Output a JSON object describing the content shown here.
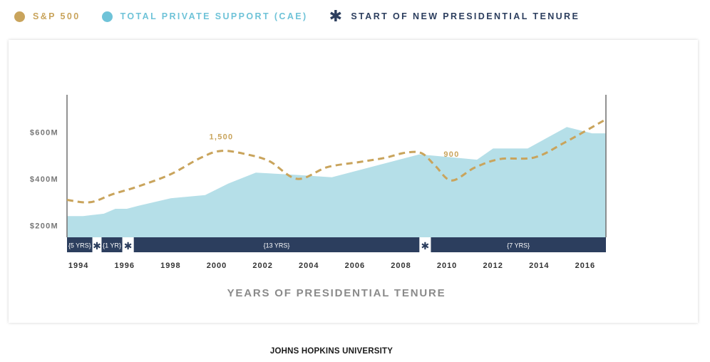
{
  "legend": {
    "sp500": {
      "label": "S&P 500",
      "color": "#c9a45c"
    },
    "support": {
      "label": "TOTAL PRIVATE SUPPORT (CAE)",
      "color": "#6fc3d8"
    },
    "tenure": {
      "label": "START OF NEW PRESIDENTIAL TENURE",
      "color": "#2c3e5e",
      "icon": "asterisk-icon"
    }
  },
  "footer": "JOHNS HOPKINS UNIVERSITY",
  "chart_data": {
    "type": "area",
    "xlabel": "YEARS OF PRESIDENTIAL TENURE",
    "ylabel": "",
    "xlim": [
      1993.5,
      2016.9
    ],
    "ylim": [
      150,
      760
    ],
    "y_ticks": [
      200,
      400,
      600
    ],
    "y_tick_labels": [
      "$200M",
      "$400M",
      "$600M"
    ],
    "x_ticks": [
      1994,
      1996,
      1998,
      2000,
      2002,
      2004,
      2006,
      2008,
      2010,
      2012,
      2014,
      2016
    ],
    "grid": false,
    "legend_position": "top",
    "series": [
      {
        "name": "TOTAL PRIVATE SUPPORT (CAE)",
        "kind": "area",
        "color": "#b5dfe8",
        "x": [
          1993.5,
          1994.2,
          1995.1,
          1995.6,
          1996.1,
          1996.6,
          1998.0,
          1999.5,
          2000.5,
          2001.7,
          2003.5,
          2005.0,
          2008.8,
          2011.3,
          2012.0,
          2013.5,
          2015.2,
          2016.3,
          2016.9
        ],
        "y": [
          241,
          241,
          251,
          272,
          272,
          285,
          317,
          331,
          380,
          427,
          417,
          407,
          505,
          482,
          530,
          530,
          622,
          595,
          595
        ]
      },
      {
        "name": "S&P 500",
        "kind": "dashed-line",
        "color": "#c9a45c",
        "x": [
          1993.5,
          1994.5,
          1995.5,
          1996.6,
          1998.0,
          1999.3,
          2000.2,
          2001.3,
          2002.3,
          2003.5,
          2004.8,
          2006.2,
          2007.3,
          2008.2,
          2008.9,
          2009.5,
          2010.2,
          2011.2,
          2012.3,
          2013.8,
          2015.1,
          2016.9
        ],
        "y": [
          310,
          300,
          335,
          368,
          420,
          490,
          520,
          505,
          475,
          400,
          450,
          472,
          490,
          512,
          510,
          455,
          393,
          448,
          485,
          492,
          555,
          655
        ]
      }
    ],
    "annotations": [
      {
        "text": "1,500",
        "x": 2000.2,
        "y": 570
      },
      {
        "text": "900",
        "x": 2010.2,
        "y": 495
      }
    ],
    "tenure_bar": {
      "segments": [
        {
          "label": "{5 YRS}",
          "start": 1993.5,
          "end": 1994.6
        },
        {
          "label": "{1 YR}",
          "start": 1995.0,
          "end": 1995.9
        },
        {
          "label": "{13 YRS}",
          "start": 1996.4,
          "end": 2008.8
        },
        {
          "label": "{7 YRS}",
          "start": 2009.3,
          "end": 2016.9
        }
      ],
      "markers": [
        1994.8,
        1996.15,
        2009.05
      ]
    }
  }
}
